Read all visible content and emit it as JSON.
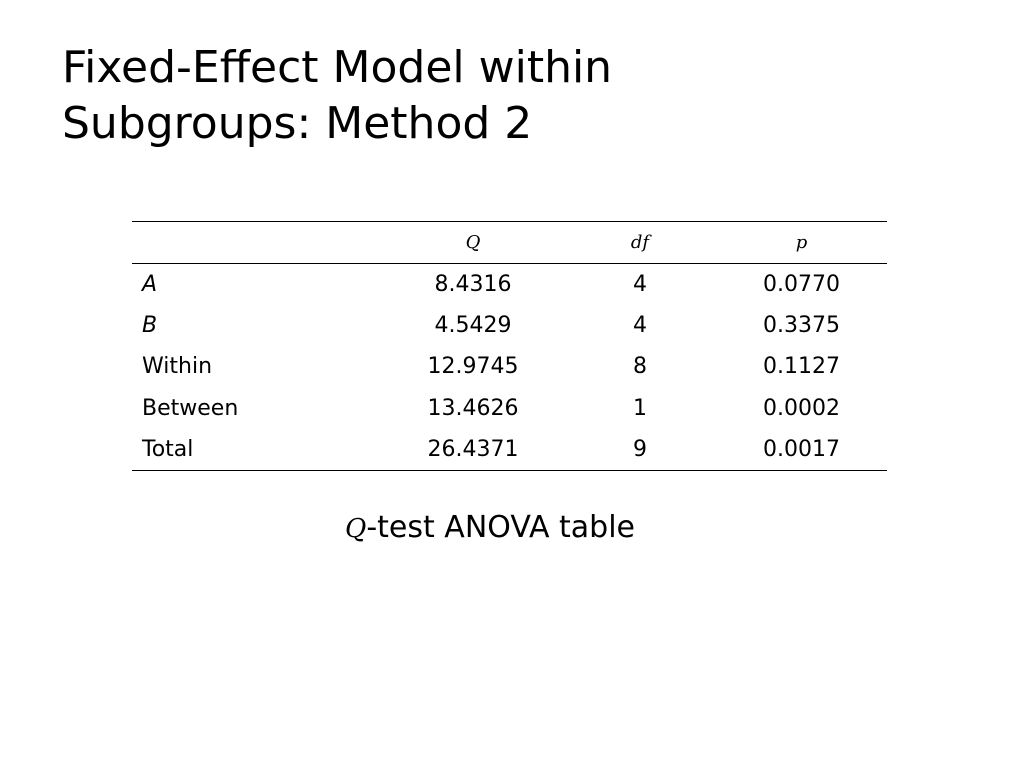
{
  "title_lines": [
    "Fixed-Effect Model within",
    "Subgroups: Method 2"
  ],
  "table": {
    "columns": [
      "Q",
      "df",
      "p"
    ],
    "rows": [
      [
        "A",
        "8.4316",
        "4",
        "0.0770"
      ],
      [
        "B",
        "4.5429",
        "4",
        "0.3375"
      ],
      [
        "Within",
        "12.9745",
        "8",
        "0.1127"
      ],
      [
        "Between",
        "13.4626",
        "1",
        "0.0002"
      ],
      [
        "Total",
        "26.4371",
        "9",
        "0.0017"
      ]
    ]
  },
  "caption": {
    "symbol": "Q",
    "text": "-test ANOVA table"
  }
}
